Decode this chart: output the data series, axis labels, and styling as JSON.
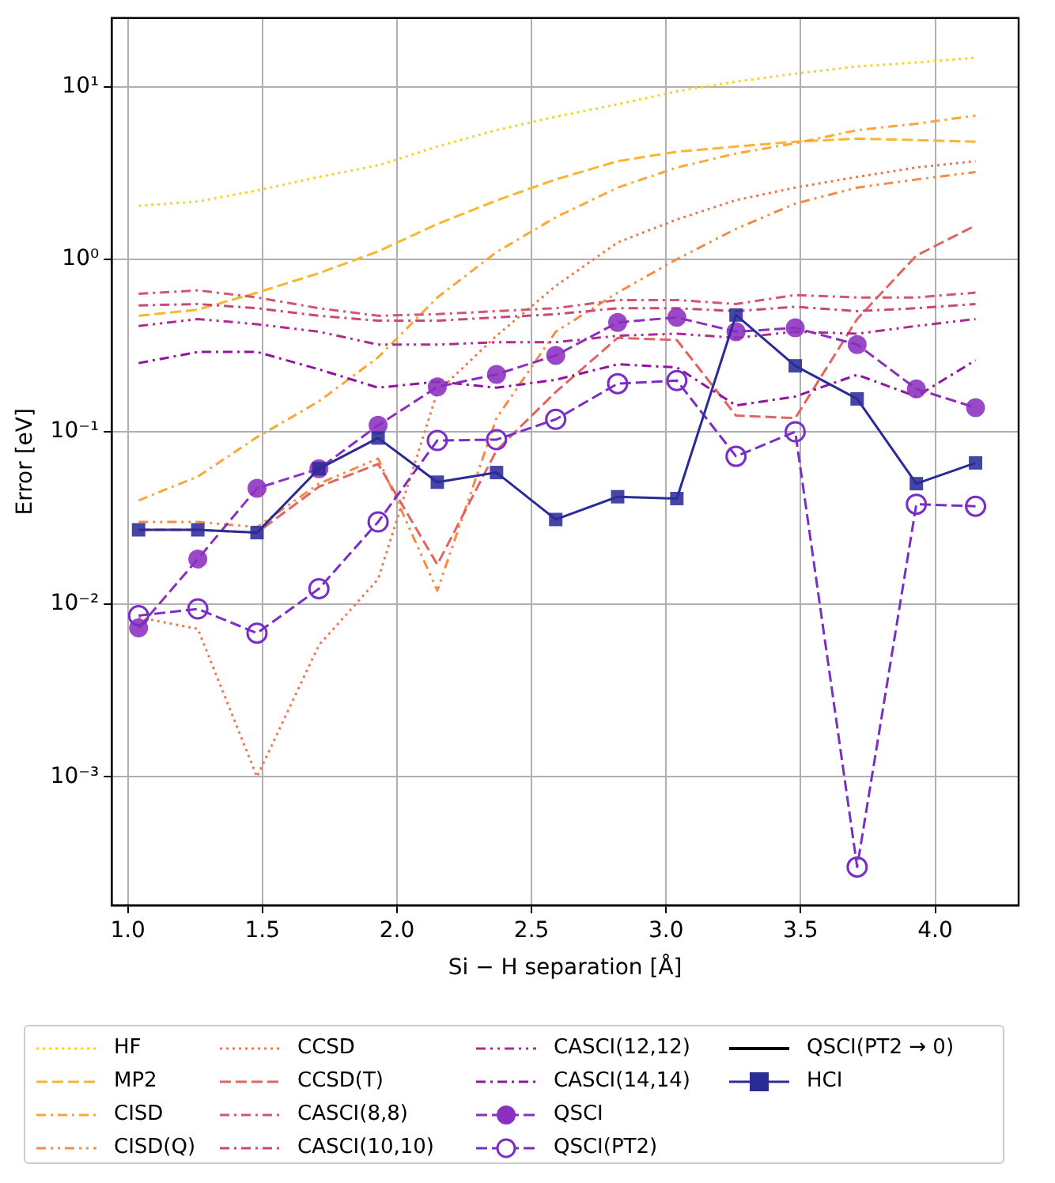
{
  "chart_data": {
    "type": "line",
    "xlabel": "Si − H separation [Å]",
    "ylabel": "Error [eV]",
    "log": "y",
    "grid": true,
    "legend": "bottom",
    "xlim": [
      0.94,
      4.31
    ],
    "xticks": [
      {
        "value": 1,
        "label": "1.0"
      },
      {
        "value": 1.5,
        "label": "1.5"
      },
      {
        "value": 2,
        "label": "2.0"
      },
      {
        "value": 2.5,
        "label": "2.5"
      },
      {
        "value": 3,
        "label": "3.0"
      },
      {
        "value": 3.5,
        "label": "3.5"
      },
      {
        "value": 4,
        "label": "4.0"
      }
    ],
    "ylim": [
      0.00018,
      25
    ],
    "yticks": [
      {
        "value": 0.001,
        "label": "10⁻³"
      },
      {
        "value": 0.01,
        "label": "10⁻²"
      },
      {
        "value": 0.1,
        "label": "10⁻¹"
      },
      {
        "value": 1,
        "label": "10⁰"
      },
      {
        "value": 10,
        "label": "10¹"
      }
    ],
    "x": [
      1.04,
      1.26,
      1.48,
      1.71,
      1.93,
      2.15,
      2.37,
      2.59,
      2.82,
      3.04,
      3.26,
      3.48,
      3.71,
      3.93,
      4.15
    ],
    "series": [
      {
        "name": "HF",
        "color": "#f2d621",
        "line_style": "dotted",
        "marker": "none",
        "values": [
          2.04,
          2.16,
          2.5,
          3.0,
          3.5,
          4.5,
          5.6,
          6.7,
          7.9,
          9.4,
          10.7,
          11.9,
          13.1,
          13.8,
          14.7
        ]
      },
      {
        "name": "MP2",
        "color": "#fdb42f",
        "line_style": "dashed",
        "marker": "none",
        "values": [
          0.47,
          0.51,
          0.64,
          0.83,
          1.11,
          1.6,
          2.19,
          2.9,
          3.7,
          4.2,
          4.5,
          4.8,
          5.0,
          4.9,
          4.8
        ]
      },
      {
        "name": "CISD",
        "color": "#fca636",
        "line_style": "dashdot",
        "marker": "none",
        "values": [
          0.04,
          0.055,
          0.093,
          0.15,
          0.27,
          0.6,
          1.1,
          1.75,
          2.6,
          3.4,
          4.1,
          4.7,
          5.6,
          6.1,
          6.8
        ]
      },
      {
        "name": "CISD(Q)",
        "color": "#f58c46",
        "line_style": "dashdotdot",
        "marker": "none",
        "values": [
          0.03,
          0.03,
          0.028,
          0.05,
          0.07,
          0.012,
          0.12,
          0.38,
          0.64,
          1.0,
          1.5,
          2.1,
          2.6,
          2.9,
          3.2
        ]
      },
      {
        "name": "CCSD",
        "color": "#ed7953",
        "line_style": "dotted",
        "marker": "none",
        "values": [
          0.0084,
          0.0072,
          0.001,
          0.0058,
          0.014,
          0.17,
          0.36,
          0.7,
          1.25,
          1.7,
          2.2,
          2.6,
          3.0,
          3.4,
          3.7
        ]
      },
      {
        "name": "CCSD(T)",
        "color": "#e16462",
        "line_style": "dashed",
        "marker": "none",
        "values": [
          0.027,
          0.027,
          0.026,
          0.048,
          0.065,
          0.017,
          0.078,
          0.17,
          0.35,
          0.34,
          0.124,
          0.12,
          0.45,
          1.05,
          1.57
        ]
      },
      {
        "name": "CASCI(8,8)",
        "color": "#d5546e",
        "line_style": "dashdot",
        "marker": "none",
        "values": [
          0.63,
          0.66,
          0.6,
          0.52,
          0.47,
          0.48,
          0.5,
          0.52,
          0.58,
          0.58,
          0.55,
          0.62,
          0.6,
          0.6,
          0.64
        ]
      },
      {
        "name": "CASCI(10,10)",
        "color": "#cc4778",
        "line_style": "dashdot",
        "marker": "none",
        "values": [
          0.54,
          0.55,
          0.52,
          0.47,
          0.44,
          0.44,
          0.46,
          0.48,
          0.52,
          0.52,
          0.5,
          0.53,
          0.5,
          0.52,
          0.55
        ]
      },
      {
        "name": "CASCI(12,12)",
        "color": "#b12a90",
        "line_style": "dashdotdot",
        "marker": "none",
        "values": [
          0.41,
          0.45,
          0.42,
          0.38,
          0.32,
          0.32,
          0.33,
          0.33,
          0.36,
          0.37,
          0.35,
          0.38,
          0.37,
          0.41,
          0.45
        ]
      },
      {
        "name": "CASCI(14,14)",
        "color": "#9512a1",
        "line_style": "dashdot",
        "marker": "none",
        "values": [
          0.25,
          0.29,
          0.29,
          0.23,
          0.18,
          0.195,
          0.18,
          0.2,
          0.246,
          0.236,
          0.142,
          0.16,
          0.214,
          0.16,
          0.26
        ]
      },
      {
        "name": "QSCI",
        "color": "#8b2fbf",
        "line_style": "dashed",
        "marker": "circle",
        "values": [
          0.0073,
          0.0183,
          0.047,
          0.061,
          0.109,
          0.182,
          0.215,
          0.277,
          0.43,
          0.46,
          0.38,
          0.4,
          0.32,
          0.177,
          0.138
        ]
      },
      {
        "name": "QSCI(PT2)",
        "color": "#7a2ec8",
        "line_style": "dashed",
        "marker": "circle-open",
        "values": [
          0.0086,
          0.0094,
          0.0068,
          0.0123,
          0.03,
          0.089,
          0.09,
          0.118,
          0.19,
          0.198,
          0.072,
          0.1,
          0.0003,
          0.038,
          0.037
        ]
      },
      {
        "name": "QSCI(PT2 → 0)",
        "color": "#000000",
        "line_style": "solid",
        "marker": "none",
        "values": [
          null,
          null,
          null,
          null,
          null,
          null,
          null,
          null,
          null,
          null,
          null,
          null,
          null,
          null,
          null
        ]
      },
      {
        "name": "HCI",
        "color": "#2b2b98",
        "line_style": "solid",
        "marker": "square",
        "values": [
          0.027,
          0.027,
          0.026,
          0.061,
          0.092,
          0.051,
          0.058,
          0.031,
          0.042,
          0.041,
          0.475,
          0.241,
          0.155,
          0.05,
          0.066
        ]
      }
    ]
  }
}
